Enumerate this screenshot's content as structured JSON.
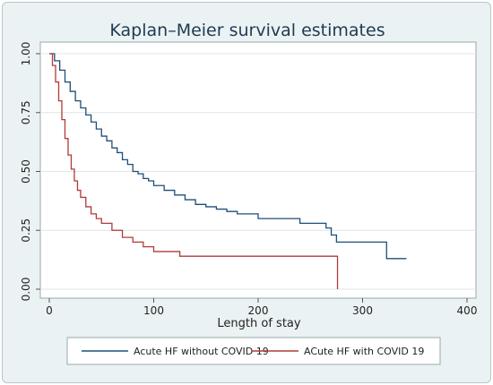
{
  "chart_data": {
    "type": "line",
    "title": "Kaplan–Meier survival estimates",
    "xlabel": "Length of stay",
    "ylabel": "",
    "xlim": [
      0,
      400
    ],
    "ylim": [
      0,
      1
    ],
    "xticks": [
      "0",
      "100",
      "200",
      "300",
      "400"
    ],
    "yticks": [
      "0.00",
      "0.25",
      "0.50",
      "0.75",
      "1.00"
    ],
    "grid": true,
    "legend_position": "bottom",
    "series": [
      {
        "name": "Acute HF without COVID 19",
        "color": "#1f4e79",
        "step": true,
        "points": [
          [
            0,
            1.0
          ],
          [
            5,
            0.97
          ],
          [
            10,
            0.93
          ],
          [
            15,
            0.88
          ],
          [
            20,
            0.84
          ],
          [
            25,
            0.8
          ],
          [
            30,
            0.77
          ],
          [
            35,
            0.74
          ],
          [
            40,
            0.71
          ],
          [
            45,
            0.68
          ],
          [
            50,
            0.65
          ],
          [
            55,
            0.63
          ],
          [
            60,
            0.6
          ],
          [
            65,
            0.58
          ],
          [
            70,
            0.55
          ],
          [
            75,
            0.53
          ],
          [
            80,
            0.5
          ],
          [
            85,
            0.49
          ],
          [
            90,
            0.47
          ],
          [
            95,
            0.46
          ],
          [
            100,
            0.44
          ],
          [
            110,
            0.42
          ],
          [
            120,
            0.4
          ],
          [
            130,
            0.38
          ],
          [
            140,
            0.36
          ],
          [
            150,
            0.35
          ],
          [
            160,
            0.34
          ],
          [
            170,
            0.33
          ],
          [
            180,
            0.32
          ],
          [
            200,
            0.3
          ],
          [
            220,
            0.3
          ],
          [
            240,
            0.28
          ],
          [
            265,
            0.26
          ],
          [
            270,
            0.23
          ],
          [
            275,
            0.2
          ],
          [
            322,
            0.2
          ],
          [
            323,
            0.13
          ],
          [
            342,
            0.13
          ]
        ]
      },
      {
        "name": "ACute HF with COVID 19",
        "color": "#b03a3a",
        "step": true,
        "points": [
          [
            0,
            1.0
          ],
          [
            3,
            0.95
          ],
          [
            6,
            0.88
          ],
          [
            9,
            0.8
          ],
          [
            12,
            0.72
          ],
          [
            15,
            0.64
          ],
          [
            18,
            0.57
          ],
          [
            21,
            0.51
          ],
          [
            24,
            0.46
          ],
          [
            27,
            0.42
          ],
          [
            30,
            0.39
          ],
          [
            35,
            0.35
          ],
          [
            40,
            0.32
          ],
          [
            45,
            0.3
          ],
          [
            50,
            0.28
          ],
          [
            60,
            0.25
          ],
          [
            70,
            0.22
          ],
          [
            80,
            0.2
          ],
          [
            90,
            0.18
          ],
          [
            100,
            0.16
          ],
          [
            125,
            0.14
          ],
          [
            276,
            0.14
          ],
          [
            276,
            0.0
          ]
        ]
      }
    ]
  }
}
